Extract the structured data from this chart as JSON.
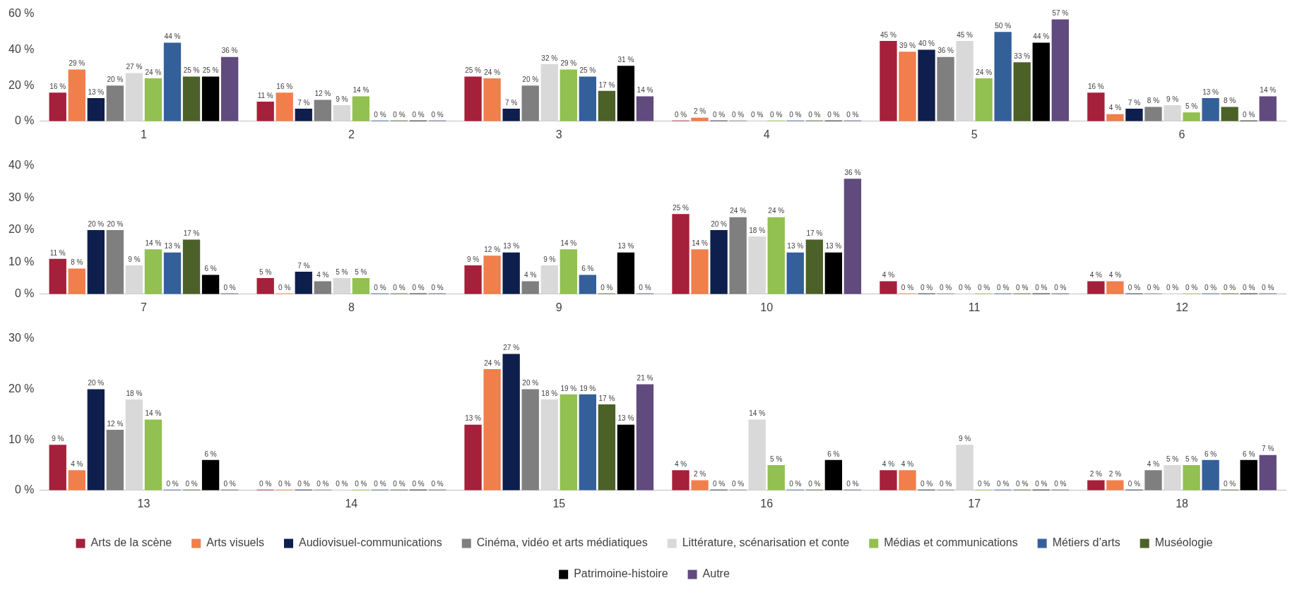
{
  "chart_data": [
    {
      "type": "bar",
      "categories": [
        "1",
        "2",
        "3",
        "4",
        "5",
        "6"
      ],
      "ylim": [
        0,
        60
      ],
      "yticks": [
        {
          "value": 0,
          "label": "0 %"
        },
        {
          "value": 20,
          "label": "20 %"
        },
        {
          "value": 40,
          "label": "40 %"
        },
        {
          "value": 60,
          "label": "60 %"
        }
      ],
      "grid": false,
      "legend": false,
      "series": [
        {
          "color": "#a5203a",
          "values": [
            16,
            11,
            25,
            0,
            45,
            16
          ],
          "value_labels": [
            "16 %",
            "11 %",
            "25 %",
            "0 %",
            "45 %",
            "16 %"
          ]
        },
        {
          "color": "#f07f4c",
          "values": [
            29,
            16,
            24,
            2,
            39,
            4
          ],
          "value_labels": [
            "29 %",
            "16 %",
            "24 %",
            "2 %",
            "39 %",
            "4 %"
          ]
        },
        {
          "color": "#0e1f4d",
          "values": [
            13,
            7,
            7,
            0,
            40,
            7
          ],
          "value_labels": [
            "13 %",
            "7 %",
            "7 %",
            "0 %",
            "40 %",
            "7 %"
          ]
        },
        {
          "color": "#7f7f7f",
          "values": [
            20,
            12,
            20,
            0,
            36,
            8
          ],
          "value_labels": [
            "20 %",
            "12 %",
            "20 %",
            "0 %",
            "36 %",
            "8 %"
          ]
        },
        {
          "color": "#d9d9d9",
          "values": [
            27,
            9,
            32,
            0,
            45,
            9
          ],
          "value_labels": [
            "27 %",
            "9 %",
            "32 %",
            "0 %",
            "45 %",
            "9 %"
          ]
        },
        {
          "color": "#92c051",
          "values": [
            24,
            14,
            29,
            0,
            24,
            5
          ],
          "value_labels": [
            "24 %",
            "14 %",
            "29 %",
            "0 %",
            "24 %",
            "5 %"
          ]
        },
        {
          "color": "#34609a",
          "values": [
            44,
            0,
            25,
            0,
            50,
            13
          ],
          "value_labels": [
            "44 %",
            "0 %",
            "25 %",
            "0 %",
            "50 %",
            "13 %"
          ]
        },
        {
          "color": "#4b6128",
          "values": [
            25,
            0,
            17,
            0,
            33,
            8
          ],
          "value_labels": [
            "25 %",
            "0 %",
            "17 %",
            "0 %",
            "33 %",
            "8 %"
          ]
        },
        {
          "color": "#000000",
          "values": [
            25,
            0,
            31,
            0,
            44,
            0
          ],
          "value_labels": [
            "25 %",
            "0 %",
            "31 %",
            "0 %",
            "44 %",
            "0 %"
          ]
        },
        {
          "color": "#614a7e",
          "values": [
            36,
            0,
            14,
            0,
            57,
            14
          ],
          "value_labels": [
            "36 %",
            "0 %",
            "14 %",
            "0 %",
            "57 %",
            "14 %"
          ]
        }
      ]
    },
    {
      "type": "bar",
      "categories": [
        "7",
        "8",
        "9",
        "10",
        "11",
        "12"
      ],
      "ylim": [
        0,
        40
      ],
      "yticks": [
        {
          "value": 0,
          "label": "0 %"
        },
        {
          "value": 10,
          "label": "10 %"
        },
        {
          "value": 20,
          "label": "20 %"
        },
        {
          "value": 30,
          "label": "30 %"
        },
        {
          "value": 40,
          "label": "40 %"
        }
      ],
      "grid": false,
      "legend": false,
      "series": [
        {
          "color": "#a5203a",
          "values": [
            11,
            5,
            9,
            25,
            4,
            4
          ],
          "value_labels": [
            "11 %",
            "5 %",
            "9 %",
            "25 %",
            "4 %",
            "4 %"
          ]
        },
        {
          "color": "#f07f4c",
          "values": [
            8,
            0,
            12,
            14,
            0,
            4
          ],
          "value_labels": [
            "8 %",
            "0 %",
            "12 %",
            "14 %",
            "0 %",
            "4 %"
          ]
        },
        {
          "color": "#0e1f4d",
          "values": [
            20,
            7,
            13,
            20,
            0,
            0
          ],
          "value_labels": [
            "20 %",
            "7 %",
            "13 %",
            "20 %",
            "0 %",
            "0 %"
          ]
        },
        {
          "color": "#7f7f7f",
          "values": [
            20,
            4,
            4,
            24,
            0,
            0
          ],
          "value_labels": [
            "20 %",
            "4 %",
            "4 %",
            "24 %",
            "0 %",
            "0 %"
          ]
        },
        {
          "color": "#d9d9d9",
          "values": [
            9,
            5,
            9,
            18,
            0,
            0
          ],
          "value_labels": [
            "9 %",
            "5 %",
            "9 %",
            "18 %",
            "0 %",
            "0 %"
          ]
        },
        {
          "color": "#92c051",
          "values": [
            14,
            5,
            14,
            24,
            0,
            0
          ],
          "value_labels": [
            "14 %",
            "5 %",
            "14 %",
            "24 %",
            "0 %",
            "0 %"
          ]
        },
        {
          "color": "#34609a",
          "values": [
            13,
            0,
            6,
            13,
            0,
            0
          ],
          "value_labels": [
            "13 %",
            "0 %",
            "6 %",
            "13 %",
            "0 %",
            "0 %"
          ]
        },
        {
          "color": "#4b6128",
          "values": [
            17,
            0,
            0,
            17,
            0,
            0
          ],
          "value_labels": [
            "17 %",
            "0 %",
            "0 %",
            "17 %",
            "0 %",
            "0 %"
          ]
        },
        {
          "color": "#000000",
          "values": [
            6,
            0,
            13,
            13,
            0,
            0
          ],
          "value_labels": [
            "6 %",
            "0 %",
            "13 %",
            "13 %",
            "0 %",
            "0 %"
          ]
        },
        {
          "color": "#614a7e",
          "values": [
            0,
            0,
            0,
            36,
            0,
            0
          ],
          "value_labels": [
            "0 %",
            "0 %",
            "0 %",
            "36 %",
            "0 %",
            "0 %"
          ]
        }
      ]
    },
    {
      "type": "bar",
      "categories": [
        "13",
        "14",
        "15",
        "16",
        "17",
        "18"
      ],
      "ylim": [
        0,
        30
      ],
      "yticks": [
        {
          "value": 0,
          "label": "0 %"
        },
        {
          "value": 10,
          "label": "10 %"
        },
        {
          "value": 20,
          "label": "20 %"
        },
        {
          "value": 30,
          "label": "30 %"
        }
      ],
      "grid": false,
      "legend": "bottom",
      "series": [
        {
          "name": "Arts de la scène",
          "color": "#a5203a",
          "values": [
            9,
            0,
            13,
            4,
            4,
            2
          ],
          "value_labels": [
            "9 %",
            "0 %",
            "13 %",
            "4 %",
            "4 %",
            "2 %"
          ]
        },
        {
          "name": "Arts visuels",
          "color": "#f07f4c",
          "values": [
            4,
            0,
            24,
            2,
            4,
            2
          ],
          "value_labels": [
            "4 %",
            "0 %",
            "24 %",
            "2 %",
            "4 %",
            "2 %"
          ]
        },
        {
          "name": "Audiovisuel-communications",
          "color": "#0e1f4d",
          "values": [
            20,
            0,
            27,
            0,
            0,
            0
          ],
          "value_labels": [
            "20 %",
            "0 %",
            "27 %",
            "0 %",
            "0 %",
            "0 %"
          ]
        },
        {
          "name": "Cinéma, vidéo et arts médiatiques",
          "color": "#7f7f7f",
          "values": [
            12,
            0,
            20,
            0,
            0,
            4
          ],
          "value_labels": [
            "12 %",
            "0 %",
            "20 %",
            "0 %",
            "0 %",
            "4 %"
          ]
        },
        {
          "name": "Littérature, scénarisation et conte",
          "color": "#d9d9d9",
          "values": [
            18,
            0,
            18,
            14,
            9,
            5
          ],
          "value_labels": [
            "18 %",
            "0 %",
            "18 %",
            "14 %",
            "9 %",
            "5 %"
          ]
        },
        {
          "name": "Médias et communications",
          "color": "#92c051",
          "values": [
            14,
            0,
            19,
            5,
            0,
            5
          ],
          "value_labels": [
            "14 %",
            "0 %",
            "19 %",
            "5 %",
            "0 %",
            "5 %"
          ]
        },
        {
          "name": "Métiers d’arts",
          "color": "#34609a",
          "values": [
            0,
            0,
            19,
            0,
            0,
            6
          ],
          "value_labels": [
            "0 %",
            "0 %",
            "19 %",
            "0 %",
            "0 %",
            "6 %"
          ]
        },
        {
          "name": "Muséologie",
          "color": "#4b6128",
          "values": [
            0,
            0,
            17,
            0,
            0,
            0
          ],
          "value_labels": [
            "0 %",
            "0 %",
            "17 %",
            "0 %",
            "0 %",
            "0 %"
          ]
        },
        {
          "name": "Patrimoine-histoire",
          "color": "#000000",
          "values": [
            6,
            0,
            13,
            6,
            0,
            6
          ],
          "value_labels": [
            "6 %",
            "0 %",
            "13 %",
            "6 %",
            "0 %",
            "6 %"
          ]
        },
        {
          "name": "Autre",
          "color": "#614a7e",
          "values": [
            0,
            0,
            21,
            0,
            0,
            7
          ],
          "value_labels": [
            "0 %",
            "0 %",
            "21 %",
            "0 %",
            "0 %",
            "7 %"
          ]
        }
      ]
    }
  ]
}
